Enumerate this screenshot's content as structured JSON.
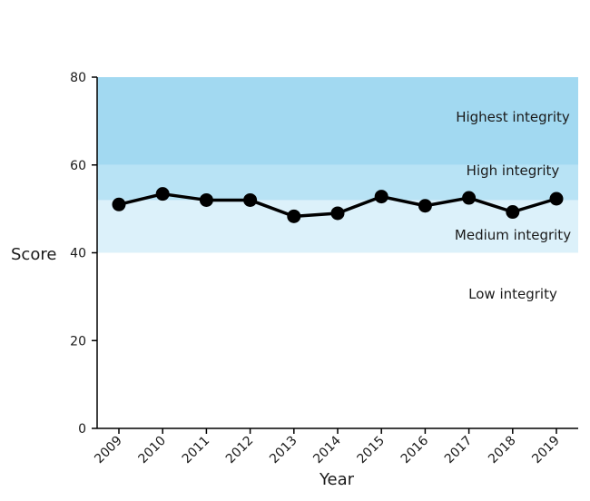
{
  "chart_data": {
    "type": "line",
    "title": "",
    "xlabel": "Year",
    "ylabel": "Score",
    "ylim": [
      0,
      80
    ],
    "yticks": [
      0,
      20,
      40,
      60,
      80
    ],
    "x": [
      "2009",
      "2010",
      "2011",
      "2012",
      "2013",
      "2014",
      "2015",
      "2016",
      "2017",
      "2018",
      "2019"
    ],
    "series": [
      {
        "values": [
          51,
          53.4,
          52,
          52,
          48.3,
          49,
          52.8,
          50.7,
          52.5,
          49.3,
          52.3
        ]
      }
    ],
    "bands": [
      {
        "label": "Low integrity",
        "from": 0,
        "to": 40,
        "color": "#ffffff"
      },
      {
        "label": "Medium integrity",
        "from": 40,
        "to": 52,
        "color": "#dcf1fa"
      },
      {
        "label": "High integrity",
        "from": 52,
        "to": 60,
        "color": "#b8e3f5"
      },
      {
        "label": "Highest integrity",
        "from": 60,
        "to": 80,
        "color": "#a2d9f1"
      }
    ],
    "line_color": "#000000",
    "grid": false,
    "legend": "none"
  }
}
